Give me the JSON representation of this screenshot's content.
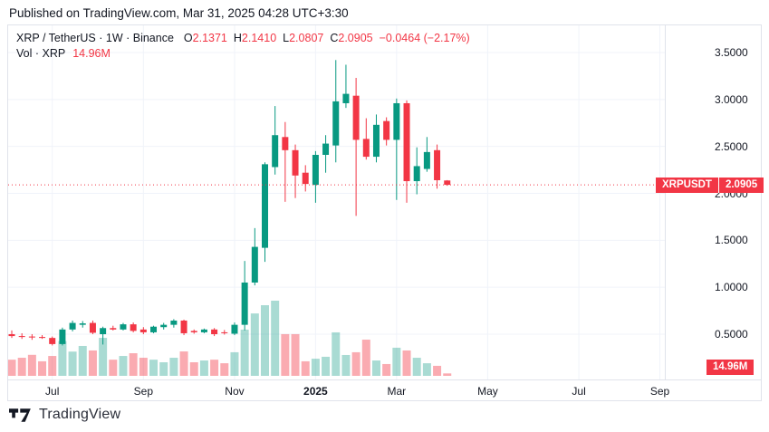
{
  "published_line": "Published on TradingView.com, Mar 31, 2025 04:28 UTC+3:30",
  "legend": {
    "symbol_line": "XRP / TetherUS · 1W · Binance",
    "ohlc": {
      "o_label": "O",
      "o": "2.1371",
      "h_label": "H",
      "h": "2.1410",
      "l_label": "L",
      "l": "2.0807",
      "c_label": "C",
      "c": "2.0905",
      "change": "−0.0464 (−2.17%)"
    },
    "vol_label": "Vol · XRP",
    "vol_value": "14.96M"
  },
  "price_flag": {
    "symbol": "XRPUSDT",
    "price": "2.0905"
  },
  "volume_flag": "14.96M",
  "logo_text": "TradingView",
  "colors": {
    "up": "#089981",
    "down": "#f23645",
    "vol_up": "rgba(8,153,129,0.35)",
    "vol_down": "rgba(242,54,69,0.42)",
    "accent_red": "#f23645",
    "grid": "#f0f3fa",
    "axis_border": "#e0e3eb",
    "axis_text": "#131722"
  },
  "chart_data": {
    "type": "candlestick+volume",
    "symbol": "XRP / TetherUS",
    "ticker": "XRPUSDT",
    "exchange": "Binance",
    "interval": "1W",
    "title": "XRP / TetherUS · 1W · Binance",
    "legend_position": "top-left",
    "grid": true,
    "y_axis": {
      "side": "right",
      "ticks": [
        "3.5000",
        "3.0000",
        "2.5000",
        "2.0000",
        "1.5000",
        "1.0000",
        "0.5000"
      ],
      "tick_values": [
        3.5,
        3.0,
        2.5,
        2.0,
        1.5,
        1.0,
        0.5
      ],
      "range_shown": [
        0.3,
        3.79
      ]
    },
    "x_axis": {
      "labels": [
        {
          "text": "Jul",
          "index": 4,
          "bold": false
        },
        {
          "text": "Sep",
          "index": 13,
          "bold": false
        },
        {
          "text": "Nov",
          "index": 22,
          "bold": false
        },
        {
          "text": "2025",
          "index": 30,
          "bold": true
        },
        {
          "text": "Mar",
          "index": 38,
          "bold": false
        },
        {
          "text": "May",
          "index": 47,
          "bold": false
        },
        {
          "text": "Jul",
          "index": 56,
          "bold": false
        },
        {
          "text": "Sep",
          "index": 64,
          "bold": false
        }
      ]
    },
    "current_price": 2.0905,
    "current_volume_millions": 14.96,
    "candles": [
      {
        "o": 0.5,
        "h": 0.54,
        "l": 0.46,
        "c": 0.48,
        "v": 100
      },
      {
        "o": 0.48,
        "h": 0.51,
        "l": 0.45,
        "c": 0.47,
        "v": 112
      },
      {
        "o": 0.475,
        "h": 0.5,
        "l": 0.44,
        "c": 0.465,
        "v": 130
      },
      {
        "o": 0.47,
        "h": 0.49,
        "l": 0.45,
        "c": 0.46,
        "v": 90
      },
      {
        "o": 0.46,
        "h": 0.475,
        "l": 0.38,
        "c": 0.395,
        "v": 123
      },
      {
        "o": 0.395,
        "h": 0.57,
        "l": 0.38,
        "c": 0.55,
        "v": 215
      },
      {
        "o": 0.55,
        "h": 0.645,
        "l": 0.53,
        "c": 0.62,
        "v": 150
      },
      {
        "o": 0.6,
        "h": 0.64,
        "l": 0.57,
        "c": 0.615,
        "v": 185
      },
      {
        "o": 0.62,
        "h": 0.645,
        "l": 0.5,
        "c": 0.515,
        "v": 157
      },
      {
        "o": 0.5,
        "h": 0.58,
        "l": 0.39,
        "c": 0.565,
        "v": 235
      },
      {
        "o": 0.565,
        "h": 0.59,
        "l": 0.54,
        "c": 0.55,
        "v": 100
      },
      {
        "o": 0.55,
        "h": 0.62,
        "l": 0.54,
        "c": 0.605,
        "v": 123
      },
      {
        "o": 0.605,
        "h": 0.625,
        "l": 0.52,
        "c": 0.535,
        "v": 140
      },
      {
        "o": 0.55,
        "h": 0.575,
        "l": 0.5,
        "c": 0.52,
        "v": 112
      },
      {
        "o": 0.52,
        "h": 0.59,
        "l": 0.51,
        "c": 0.58,
        "v": 100
      },
      {
        "o": 0.575,
        "h": 0.62,
        "l": 0.55,
        "c": 0.6,
        "v": 84
      },
      {
        "o": 0.6,
        "h": 0.66,
        "l": 0.57,
        "c": 0.645,
        "v": 112
      },
      {
        "o": 0.645,
        "h": 0.655,
        "l": 0.49,
        "c": 0.51,
        "v": 151
      },
      {
        "o": 0.535,
        "h": 0.55,
        "l": 0.505,
        "c": 0.52,
        "v": 84
      },
      {
        "o": 0.52,
        "h": 0.56,
        "l": 0.51,
        "c": 0.55,
        "v": 95
      },
      {
        "o": 0.55,
        "h": 0.565,
        "l": 0.48,
        "c": 0.5,
        "v": 100
      },
      {
        "o": 0.52,
        "h": 0.545,
        "l": 0.495,
        "c": 0.51,
        "v": 78
      },
      {
        "o": 0.505,
        "h": 0.625,
        "l": 0.49,
        "c": 0.6,
        "v": 146
      },
      {
        "o": 0.6,
        "h": 1.28,
        "l": 0.54,
        "c": 1.05,
        "v": 286
      },
      {
        "o": 1.05,
        "h": 1.63,
        "l": 1.02,
        "c": 1.43,
        "v": 386
      },
      {
        "o": 1.42,
        "h": 2.33,
        "l": 1.27,
        "c": 2.31,
        "v": 437
      },
      {
        "o": 2.28,
        "h": 2.93,
        "l": 2.2,
        "c": 2.62,
        "v": 465
      },
      {
        "o": 2.6,
        "h": 2.76,
        "l": 1.91,
        "c": 2.46,
        "v": 258
      },
      {
        "o": 2.46,
        "h": 2.52,
        "l": 1.95,
        "c": 2.19,
        "v": 258
      },
      {
        "o": 2.22,
        "h": 2.3,
        "l": 2.02,
        "c": 2.1,
        "v": 90
      },
      {
        "o": 2.09,
        "h": 2.45,
        "l": 1.9,
        "c": 2.41,
        "v": 106
      },
      {
        "o": 2.41,
        "h": 2.62,
        "l": 2.22,
        "c": 2.53,
        "v": 118
      },
      {
        "o": 2.51,
        "h": 3.42,
        "l": 2.33,
        "c": 2.98,
        "v": 269
      },
      {
        "o": 2.96,
        "h": 3.37,
        "l": 2.91,
        "c": 3.06,
        "v": 129
      },
      {
        "o": 3.04,
        "h": 3.23,
        "l": 1.76,
        "c": 2.57,
        "v": 146
      },
      {
        "o": 2.58,
        "h": 2.8,
        "l": 2.36,
        "c": 2.39,
        "v": 224
      },
      {
        "o": 2.39,
        "h": 2.84,
        "l": 2.33,
        "c": 2.73,
        "v": 95
      },
      {
        "o": 2.77,
        "h": 2.81,
        "l": 2.51,
        "c": 2.57,
        "v": 73
      },
      {
        "o": 2.57,
        "h": 3.01,
        "l": 1.93,
        "c": 2.96,
        "v": 174
      },
      {
        "o": 2.96,
        "h": 2.99,
        "l": 1.9,
        "c": 2.13,
        "v": 157
      },
      {
        "o": 2.13,
        "h": 2.49,
        "l": 1.99,
        "c": 2.29,
        "v": 112
      },
      {
        "o": 2.26,
        "h": 2.6,
        "l": 2.23,
        "c": 2.44,
        "v": 78
      },
      {
        "o": 2.46,
        "h": 2.52,
        "l": 2.05,
        "c": 2.14,
        "v": 62
      },
      {
        "o": 2.1371,
        "h": 2.141,
        "l": 2.0807,
        "c": 2.0905,
        "v": 14.96
      }
    ]
  }
}
